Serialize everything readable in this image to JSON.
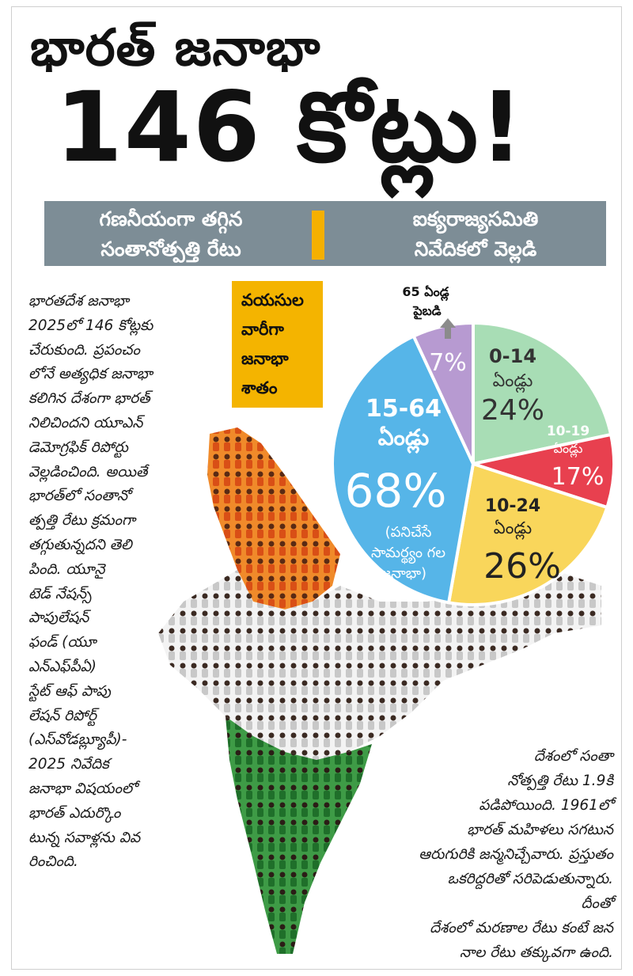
{
  "headline": {
    "line1": "భారత్ జనాభా",
    "line2": "146 కోట్లు!"
  },
  "subhead": {
    "left": [
      "గణనీయంగా తగ్గిన",
      "సంతానోత్పత్తి రేటు"
    ],
    "right": [
      "ఐక్యరాజ్యసమితి",
      "నివేదికలో వెల్లడి"
    ]
  },
  "chart_label": [
    "వయసుల",
    "వారీగా",
    "జనాభా",
    "శాతం"
  ],
  "left_paragraph": "భారతదేశ జనాభా 2025లో 146 కోట్లకు చేరుకుంది. ప్రపంచం లోనే అత్యధిక జనాభా కలిగిన దేశంగా భారత్ నిలిచిందని యూఎన్ డెమోగ్రఫిక్ రిపోర్టు వెల్లడించింది. అయితే భారత్‌లో సంతానో త్పత్తి రేటు క్రమంగా తగ్గుతున్నదని తెలి పింది. యూనై టెడ్ నేషన్స్ పాపులేషన్ ఫండ్ (యూ ఎన్‌ఎఫ్‌పీఏ) స్టేట్ ఆఫ్ పాపు లేషన్ రిపోర్ట్ (ఎస్‌వోడబ్ల్యూపీ)- 2025 నివేదిక జనాభా విషయంలో భారత్ ఎదుర్కొం టున్న సవాళ్లను వివ రించింది.",
  "left_lines": [
    "భారతదేశ జనాభా",
    "2025లో 146 కోట్లకు",
    "చేరుకుంది. ప్రపంచం",
    "లోనే అత్యధిక జనాభా",
    "కలిగిన దేశంగా భారత్",
    "నిలిచిందని యూఎన్",
    "డెమోగ్రఫిక్ రిపోర్టు",
    "వెల్లడించింది. అయితే",
    "భారత్‌లో సంతానో",
    "త్పత్తి రేటు క్రమంగా",
    "తగ్గుతున్నదని తెలి",
    "పింది. యూనై",
    "టెడ్ నేషన్స్",
    "పాపులేషన్",
    "ఫండ్ (యూ",
    "ఎన్‌ఎఫ్‌పీఏ)",
    "స్టేట్ ఆఫ్ పాపు",
    "లేషన్ రిపోర్ట్",
    "(ఎస్‌వోడబ్ల్యూపీ)-",
    "2025 నివేదిక",
    "జనాభా విషయంలో",
    "భారత్ ఎదుర్కొం",
    "టున్న సవాళ్లను వివ",
    "రించింది."
  ],
  "right_lines": [
    "దేశంలో సంతా",
    "నోత్పత్తి రేటు 1.9కి",
    "పడిపోయింది. 1961లో",
    "భారత్ మహిళలు సగటున",
    "ఆరుగురికి జన్మనిచ్చేవారు. ప్రస్తుతం",
    "ఒకరిద్దరితో సరిపెడుతున్నారు. దీంతో",
    "దేశంలో మరణాల రేటు కంటే జన",
    "నాల రేటు తక్కువగా ఉంది."
  ],
  "colors": {
    "band": "#7d8d96",
    "accent": "#f4b400",
    "slice_0_14": "#a8ddb5",
    "slice_10_19": "#e8404f",
    "slice_10_24": "#f9d65b",
    "slice_15_64": "#56b5e8",
    "slice_65": "#b79ad1",
    "saffron": "#e8771c",
    "white_crowd": "#d9d9d9",
    "green_crowd": "#2f8a3a"
  },
  "chart_data": {
    "type": "pie",
    "title": "వయసుల వారీగా జనాభా శాతం",
    "slices": [
      {
        "label": "0-14",
        "sublabel": "ఏండ్లు",
        "value": 24
      },
      {
        "label": "10-19",
        "sublabel": "ఏండ్లు",
        "value": 17
      },
      {
        "label": "10-24",
        "sublabel": "ఏండ్లు",
        "value": 26
      },
      {
        "label": "15-64",
        "sublabel": "ఏండ్లు",
        "value": 68,
        "note": [
          "(పనిచేసే",
          "సామర్థ్యం గల",
          "జనాభా)"
        ]
      },
      {
        "label": "65 ఏండ్ల",
        "sublabel": "పైబడి",
        "value": 7
      }
    ],
    "value_suffix": "%"
  }
}
